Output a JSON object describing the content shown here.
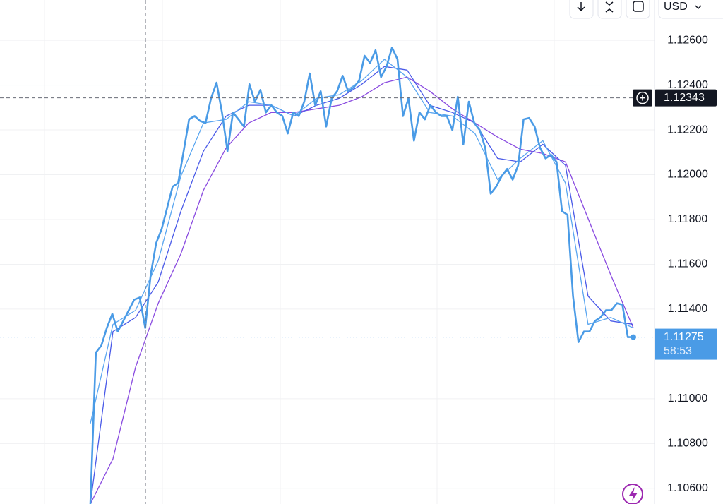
{
  "chart_data": {
    "type": "line",
    "ylim": [
      1.1053,
      1.1278
    ],
    "yticks": [
      {
        "value": 1.106,
        "label": "1.10600"
      },
      {
        "value": 1.108,
        "label": "1.10800"
      },
      {
        "value": 1.11,
        "label": "1.11000"
      },
      {
        "value": 1.114,
        "label": "1.11400"
      },
      {
        "value": 1.116,
        "label": "1.11600"
      },
      {
        "value": 1.118,
        "label": "1.11800"
      },
      {
        "value": 1.12,
        "label": "1.12000"
      },
      {
        "value": 1.122,
        "label": "1.12200"
      },
      {
        "value": 1.124,
        "label": "1.12400"
      },
      {
        "value": 1.126,
        "label": "1.12600"
      }
    ],
    "grid": true,
    "series": [
      {
        "color": "#4a9be6",
        "values": [
          1.1053,
          1.11206,
          1.11237,
          1.11316,
          1.11379,
          1.113,
          1.11347,
          1.11395,
          1.11442,
          1.11452,
          1.11316,
          1.11553,
          1.11695,
          1.11758,
          1.11852,
          1.11947,
          1.11963,
          1.12105,
          1.12247,
          1.12262,
          1.1224,
          1.12231,
          1.12341,
          1.12411,
          1.12278,
          1.12105,
          1.12278,
          1.12247,
          1.12215,
          1.12404,
          1.12326,
          1.12379,
          1.12278,
          1.1231,
          1.12278,
          1.12262,
          1.12184,
          1.12278,
          1.12262,
          1.12326,
          1.12452,
          1.1231,
          1.12373,
          1.12215,
          1.12341,
          1.12373,
          1.12442,
          1.12373,
          1.12389,
          1.1242,
          1.12531,
          1.12499,
          1.12556,
          1.12436,
          1.12483,
          1.12568,
          1.12515,
          1.12262,
          1.12341,
          1.12152,
          1.12278,
          1.12247,
          1.1231,
          1.12278,
          1.12262,
          1.12262,
          1.12199,
          1.12348,
          1.12136,
          1.12326,
          1.12231,
          1.12199,
          1.1212,
          1.11915,
          1.11947,
          1.11994,
          1.12026,
          1.11978,
          1.12042,
          1.12247,
          1.12253,
          1.12215,
          1.1212,
          1.12073,
          1.12089,
          1.12057,
          1.11837,
          1.11821,
          1.11458,
          1.11253,
          1.113,
          1.113,
          1.11347,
          1.11363,
          1.11395,
          1.11395,
          1.11426,
          1.1142,
          1.11275,
          1.11275
        ]
      },
      {
        "color": "#5aa6f0",
        "values": [
          1.1089,
          1.11332,
          1.11395,
          1.11616,
          1.11994,
          1.12231,
          1.12247,
          1.12326,
          1.1231,
          1.12262,
          1.12341,
          1.12357,
          1.1242,
          1.12515,
          1.12436,
          1.12278,
          1.12262,
          1.12184,
          1.11978,
          1.12073,
          1.12152,
          1.11963,
          1.11332,
          1.11363,
          1.11316
        ]
      },
      {
        "color": "#4a5ae8",
        "values": [
          1.1053,
          1.113,
          1.11363,
          1.11521,
          1.11837,
          1.12105,
          1.12262,
          1.1231,
          1.1231,
          1.12262,
          1.1231,
          1.12341,
          1.12404,
          1.12483,
          1.12467,
          1.1231,
          1.12278,
          1.12231,
          1.12073,
          1.12057,
          1.12136,
          1.12042,
          1.11458,
          1.11347,
          1.11332
        ]
      },
      {
        "color": "#8a4be0",
        "values": [
          1.1053,
          1.10732,
          1.11142,
          1.11426,
          1.11647,
          1.11931,
          1.1212,
          1.12231,
          1.12278,
          1.12278,
          1.12294,
          1.1231,
          1.12348,
          1.12411,
          1.12436,
          1.12373,
          1.12294,
          1.12231,
          1.12168,
          1.12114,
          1.12095,
          1.12057,
          1.11805,
          1.11553,
          1.11316
        ]
      }
    ],
    "crosshair_price": 1.12343,
    "last_price": 1.11275,
    "countdown": "58:53",
    "currency": "USD"
  }
}
